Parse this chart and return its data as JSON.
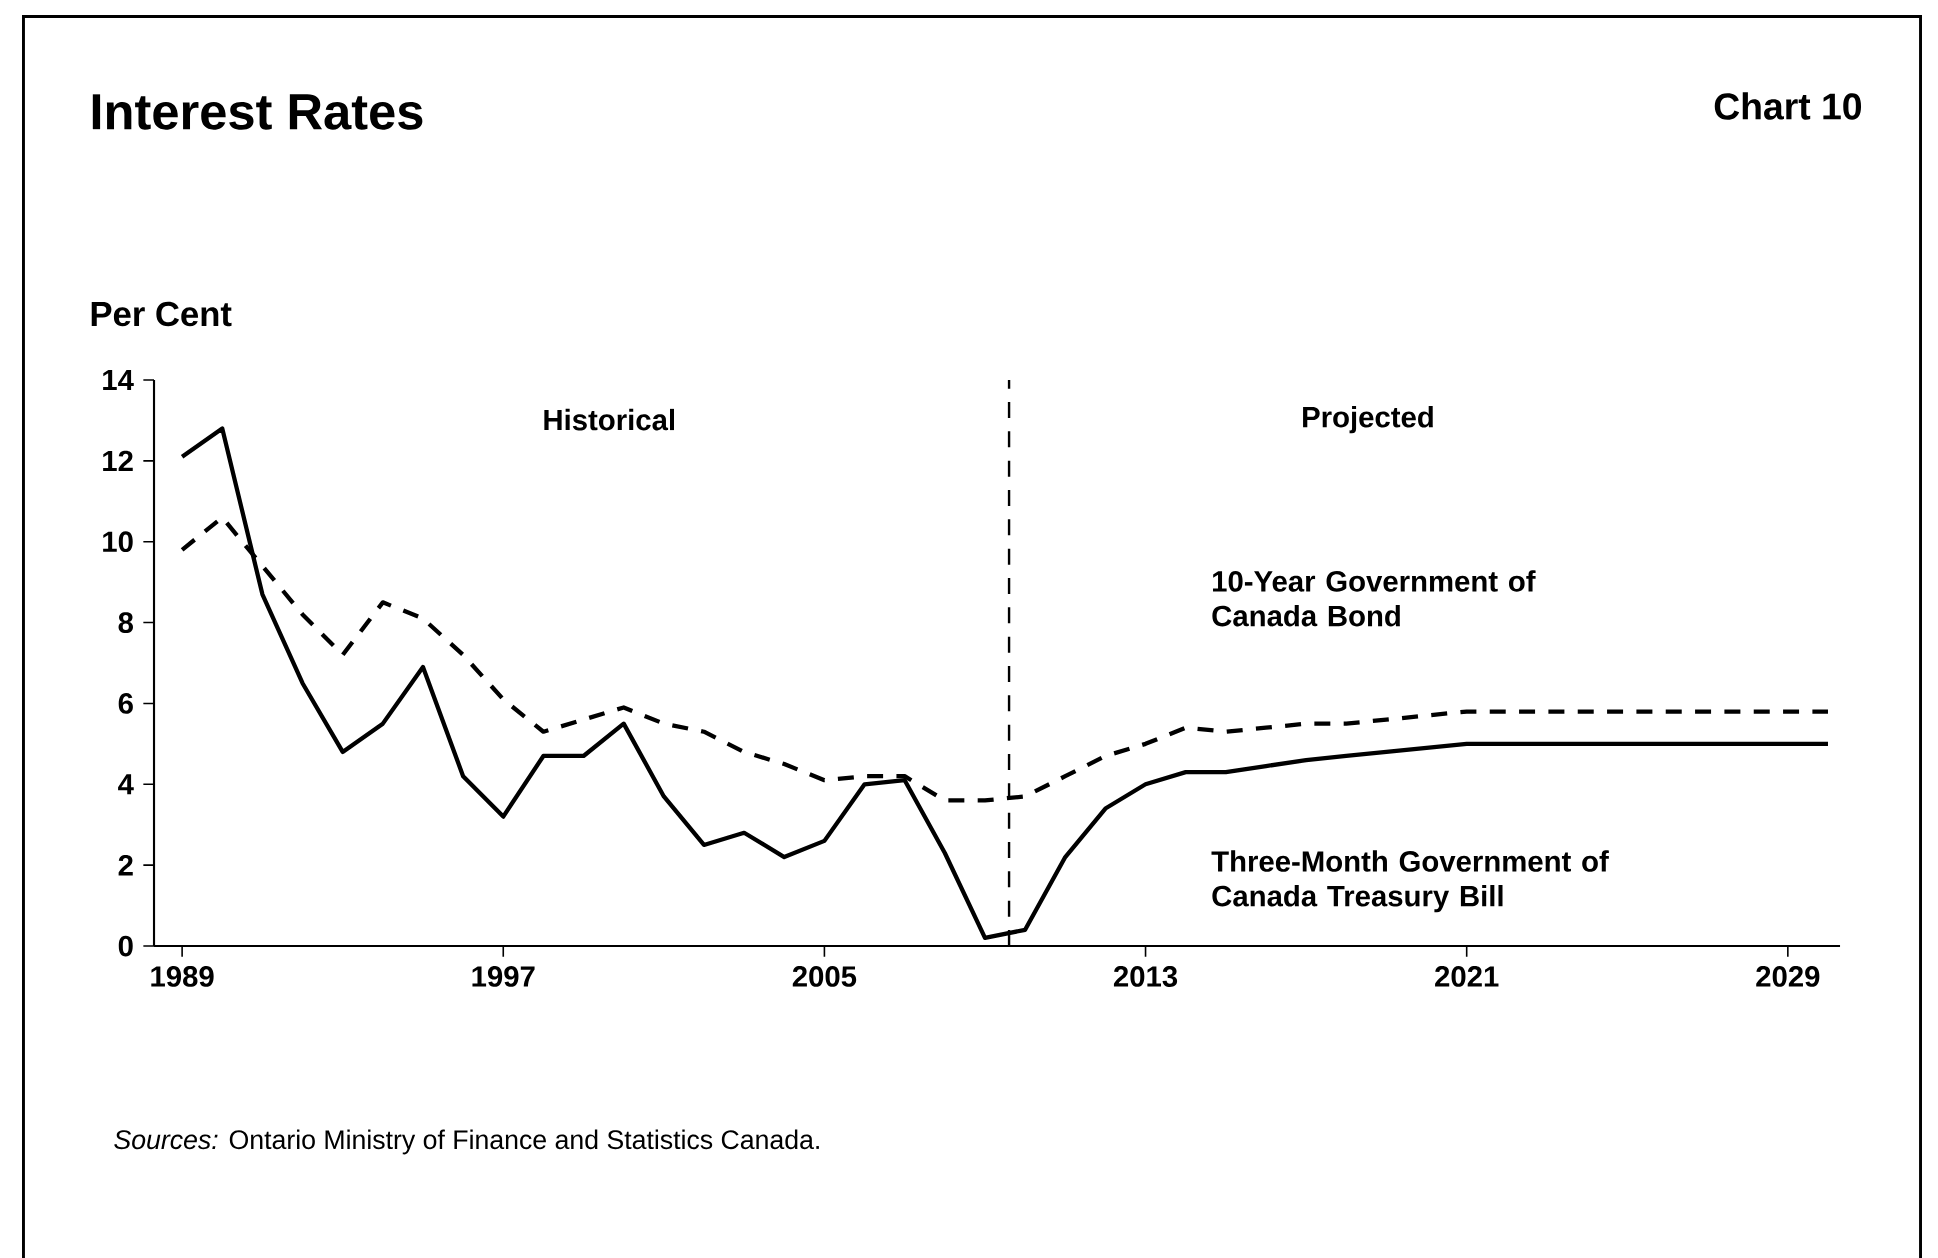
{
  "chart_data": {
    "type": "line",
    "title": "Interest Rates",
    "subtitle": "Chart 10",
    "ylabel": "Per Cent",
    "x": [
      1989,
      1990,
      1991,
      1992,
      1993,
      1994,
      1995,
      1996,
      1997,
      1998,
      1999,
      2000,
      2001,
      2002,
      2003,
      2004,
      2005,
      2006,
      2007,
      2008,
      2009,
      2010,
      2011,
      2012,
      2013,
      2014,
      2015,
      2016,
      2017,
      2018,
      2019,
      2020,
      2021,
      2022,
      2023,
      2024,
      2025,
      2026,
      2027,
      2028,
      2029,
      2030
    ],
    "series": [
      {
        "name": "10-Year Government of Canada Bond",
        "color": "#000000",
        "line_style": "dashed",
        "values": [
          9.8,
          10.6,
          9.4,
          8.2,
          7.2,
          8.5,
          8.1,
          7.2,
          6.1,
          5.3,
          5.6,
          5.9,
          5.5,
          5.3,
          4.8,
          4.5,
          4.1,
          4.2,
          4.2,
          3.6,
          3.6,
          3.7,
          4.2,
          4.7,
          5.0,
          5.4,
          5.3,
          5.4,
          5.5,
          5.5,
          5.6,
          5.7,
          5.8,
          5.8,
          5.8,
          5.8,
          5.8,
          5.8,
          5.8,
          5.8,
          5.8,
          5.8
        ]
      },
      {
        "name": "Three-Month Government of Canada Treasury Bill",
        "color": "#000000",
        "line_style": "solid",
        "values": [
          12.1,
          12.8,
          8.7,
          6.5,
          4.8,
          5.5,
          6.9,
          4.2,
          3.2,
          4.7,
          4.7,
          5.5,
          3.7,
          2.5,
          2.8,
          2.2,
          2.6,
          4.0,
          4.1,
          2.3,
          0.2,
          0.4,
          2.2,
          3.4,
          4.0,
          4.3,
          4.3,
          4.45,
          4.6,
          4.7,
          4.8,
          4.9,
          5.0,
          5.0,
          5.0,
          5.0,
          5.0,
          5.0,
          5.0,
          5.0,
          5.0,
          5.0
        ]
      }
    ],
    "xlim": [
      1988.3,
      2030.3
    ],
    "xticks": [
      1989,
      1997,
      2005,
      2013,
      2021,
      2029
    ],
    "ylim": [
      0,
      14
    ],
    "yticks": [
      0,
      2,
      4,
      6,
      8,
      10,
      12,
      14
    ],
    "grid": false,
    "legend": false,
    "ref_lines": [
      {
        "axis": "x",
        "value": 2009.6,
        "line_style": "dashed",
        "color": "#000000"
      }
    ],
    "annotations": [
      "Historical",
      "Projected",
      "*Sources:* Ontario Ministry of Finance and Statistics Canada."
    ]
  }
}
